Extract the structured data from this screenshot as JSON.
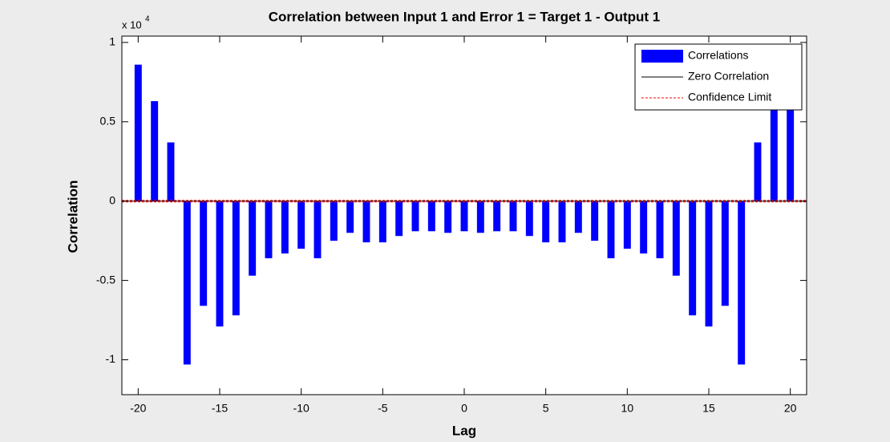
{
  "chart_data": {
    "type": "bar",
    "title": "Correlation between Input 1 and Error 1 = Target 1 - Output 1",
    "x_label": "Lag",
    "y_label": "Correlation",
    "y_multiplier": "x 10",
    "y_multiplier_exponent": "4",
    "x": [
      -20,
      -19,
      -18,
      -17,
      -16,
      -15,
      -14,
      -13,
      -12,
      -11,
      -10,
      -9,
      -8,
      -7,
      -6,
      -5,
      -4,
      -3,
      -2,
      -1,
      0,
      1,
      2,
      3,
      4,
      5,
      6,
      7,
      8,
      9,
      10,
      11,
      12,
      13,
      14,
      15,
      16,
      17,
      18,
      19,
      20
    ],
    "series": [
      {
        "name": "Correlations",
        "color": "#0000ff",
        "values": [
          0.86,
          0.63,
          0.37,
          -1.03,
          -0.66,
          -0.79,
          -0.72,
          -0.47,
          -0.36,
          -0.33,
          -0.3,
          -0.36,
          -0.25,
          -0.2,
          -0.26,
          -0.26,
          -0.22,
          -0.19,
          -0.19,
          -0.2,
          -0.19,
          -0.2,
          -0.19,
          -0.19,
          -0.22,
          -0.26,
          -0.26,
          -0.2,
          -0.25,
          -0.36,
          -0.3,
          -0.33,
          -0.36,
          -0.47,
          -0.72,
          -0.79,
          -0.66,
          -1.03,
          0.37,
          0.63,
          0.86
        ]
      }
    ],
    "reference_lines": [
      {
        "name": "Zero Correlation",
        "color": "#000000",
        "values": [
          0
        ],
        "dashed": false
      },
      {
        "name": "Confidence Limit",
        "color": "#ff0000",
        "values": [
          0.005,
          -0.005
        ],
        "dashed": true
      }
    ],
    "xlim": [
      -21,
      21
    ],
    "xticks": [
      -20,
      -15,
      -10,
      -5,
      0,
      5,
      10,
      15,
      20
    ],
    "ylim": [
      -1.22,
      1.04
    ],
    "yticks": [
      -1,
      -0.5,
      0,
      0.5,
      1
    ],
    "legend": "top-right"
  }
}
